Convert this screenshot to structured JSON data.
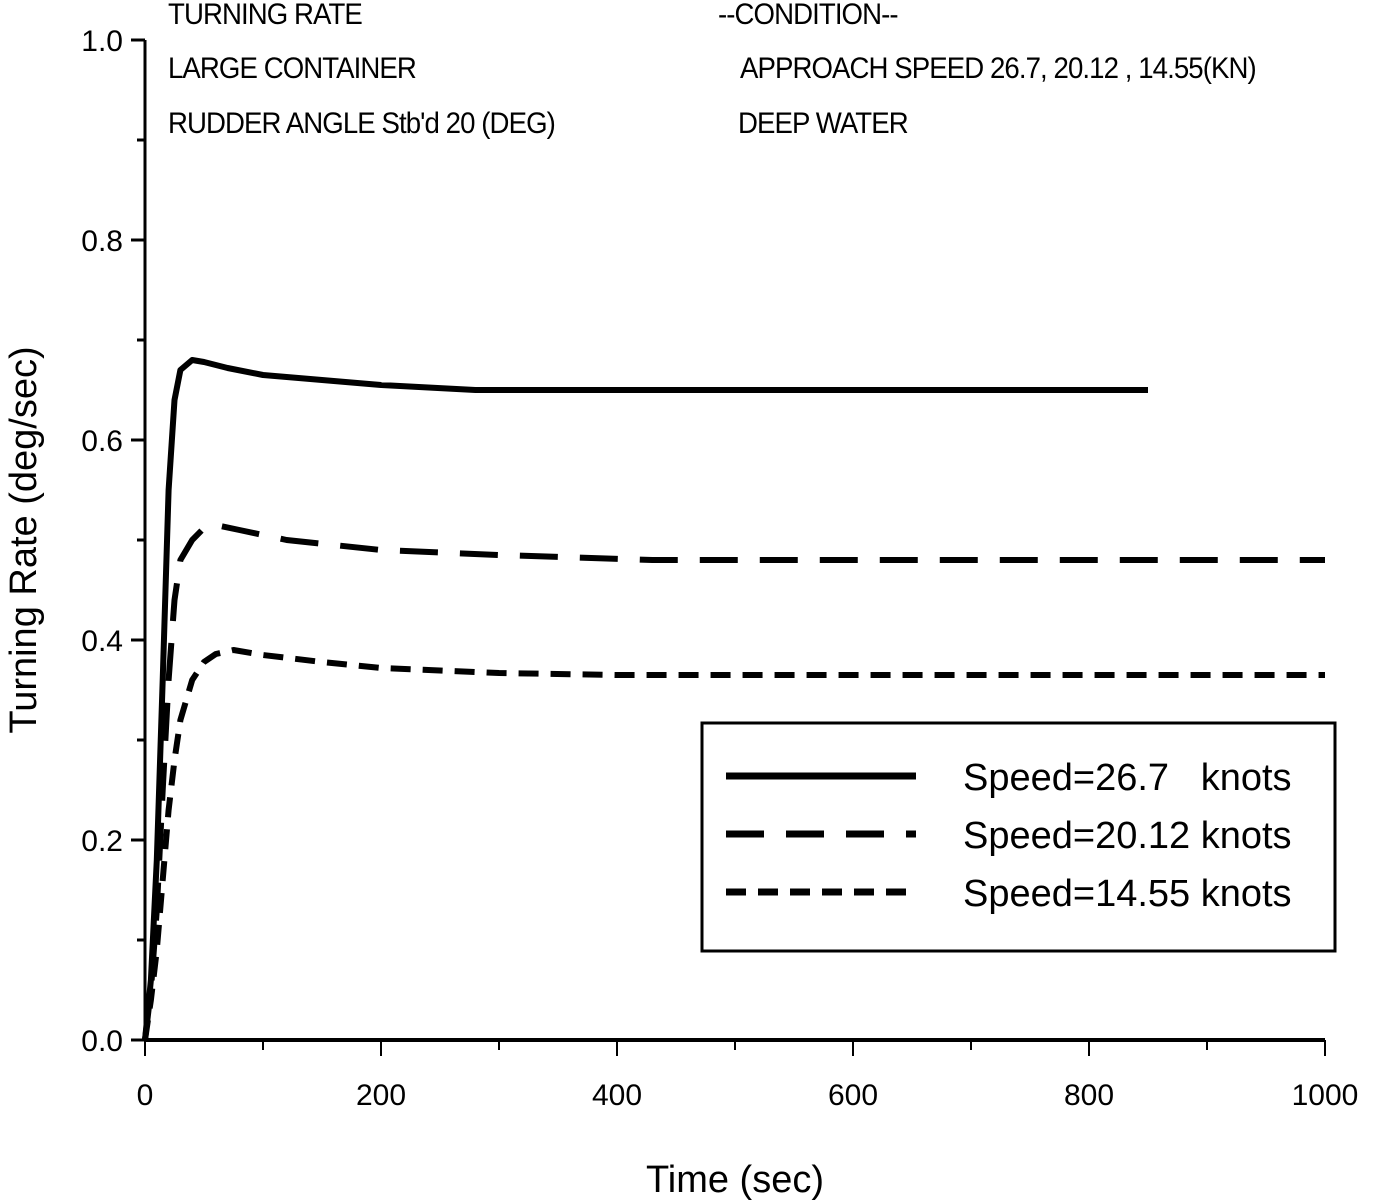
{
  "header": {
    "left": [
      "TURNING RATE",
      "LARGE CONTAINER",
      "RUDDER ANGLE Stb'd 20 (DEG)"
    ],
    "right": [
      "--CONDITION--",
      "APPROACH SPEED 26.7, 20.12 , 14.55(KN)",
      "DEEP WATER"
    ]
  },
  "chart_data": {
    "type": "line",
    "title": "TURNING RATE",
    "annotations": [
      "TURNING RATE",
      "LARGE CONTAINER",
      "RUDDER ANGLE Stb'd 20 (DEG)",
      "--CONDITION--",
      "APPROACH SPEED 26.7, 20.12 , 14.55(KN)",
      "DEEP WATER"
    ],
    "xlabel": "Time (sec)",
    "ylabel": "Turning Rate (deg/sec)",
    "xlim": [
      0,
      1000
    ],
    "ylim": [
      0.0,
      1.0
    ],
    "xticks": [
      0,
      200,
      400,
      600,
      800,
      1000
    ],
    "xtick_labels": [
      "0",
      "200",
      "400",
      "600",
      "800",
      "1000"
    ],
    "yticks": [
      0.0,
      0.2,
      0.4,
      0.6,
      0.8,
      1.0
    ],
    "ytick_labels": [
      "0.0",
      "0.2",
      "0.4",
      "0.6",
      "0.8",
      "1.0"
    ],
    "grid": false,
    "legend_position": "lower right (inside plot)",
    "series": [
      {
        "name": "Speed=26.7   knots",
        "style": "solid",
        "x": [
          0,
          5,
          10,
          15,
          20,
          25,
          30,
          40,
          50,
          70,
          100,
          150,
          200,
          280,
          400,
          600,
          850
        ],
        "y": [
          0.0,
          0.06,
          0.18,
          0.36,
          0.55,
          0.64,
          0.67,
          0.68,
          0.678,
          0.672,
          0.665,
          0.66,
          0.655,
          0.65,
          0.65,
          0.65,
          0.65
        ]
      },
      {
        "name": "Speed=20.12 knots",
        "style": "long-dash",
        "x": [
          0,
          5,
          10,
          15,
          20,
          25,
          30,
          40,
          50,
          60,
          80,
          120,
          200,
          300,
          430,
          600,
          800,
          1000
        ],
        "y": [
          0.0,
          0.05,
          0.13,
          0.25,
          0.36,
          0.44,
          0.48,
          0.5,
          0.512,
          0.515,
          0.51,
          0.5,
          0.49,
          0.485,
          0.48,
          0.48,
          0.48,
          0.48
        ]
      },
      {
        "name": "Speed=14.55 knots",
        "style": "short-dash",
        "x": [
          0,
          5,
          10,
          15,
          20,
          25,
          30,
          40,
          50,
          60,
          75,
          100,
          150,
          200,
          300,
          400,
          600,
          800,
          1000
        ],
        "y": [
          0.0,
          0.04,
          0.09,
          0.16,
          0.23,
          0.28,
          0.32,
          0.36,
          0.378,
          0.386,
          0.39,
          0.385,
          0.378,
          0.372,
          0.367,
          0.365,
          0.365,
          0.365,
          0.365
        ]
      }
    ]
  },
  "legend": {
    "items": [
      {
        "label": "Speed=26.7   knots",
        "dash": "none"
      },
      {
        "label": "Speed=20.12 knots",
        "dash": "38 22"
      },
      {
        "label": "Speed=14.55 knots",
        "dash": "20 12"
      }
    ]
  }
}
